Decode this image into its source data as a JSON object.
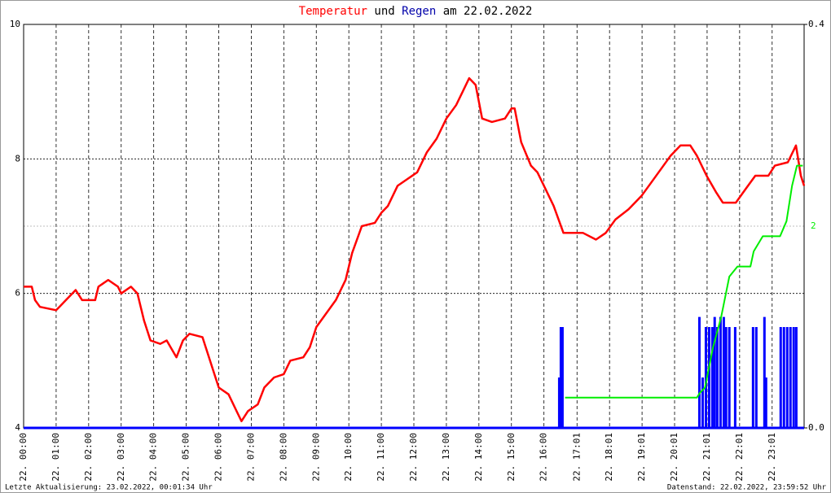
{
  "chart_data": {
    "type": "line",
    "title_parts": [
      "und",
      "am 22.02.2022"
    ],
    "footer_left": "Letzte Aktualisierung: 23.02.2022, 00:01:34 Uhr",
    "footer_right": "Datenstand: 22.02.2022, 23:59:52 Uhr",
    "xlim": [
      0,
      24
    ],
    "xticks": [
      {
        "value": 0,
        "label": "22. 00:00"
      },
      {
        "value": 1,
        "label": "22. 01:00"
      },
      {
        "value": 2,
        "label": "22. 02:00"
      },
      {
        "value": 3,
        "label": "22. 03:00"
      },
      {
        "value": 4,
        "label": "22. 04:00"
      },
      {
        "value": 5,
        "label": "22. 05:00"
      },
      {
        "value": 6,
        "label": "22. 06:00"
      },
      {
        "value": 7,
        "label": "22. 07:00"
      },
      {
        "value": 8,
        "label": "22. 08:00"
      },
      {
        "value": 9,
        "label": "22. 09:00"
      },
      {
        "value": 10,
        "label": "22. 10:00"
      },
      {
        "value": 11,
        "label": "22. 11:00"
      },
      {
        "value": 12,
        "label": "22. 12:00"
      },
      {
        "value": 13,
        "label": "22. 13:00"
      },
      {
        "value": 14,
        "label": "22. 14:00"
      },
      {
        "value": 15,
        "label": "22. 15:00"
      },
      {
        "value": 16,
        "label": "22. 16:00"
      },
      {
        "value": 17.017,
        "label": "22. 17:01"
      },
      {
        "value": 18.017,
        "label": "22. 18:01"
      },
      {
        "value": 19.017,
        "label": "22. 19:01"
      },
      {
        "value": 20.017,
        "label": "22. 20:01"
      },
      {
        "value": 21.017,
        "label": "22. 21:01"
      },
      {
        "value": 22.017,
        "label": "22. 22:01"
      },
      {
        "value": 23.017,
        "label": "22. 23:01"
      }
    ],
    "ylim": [
      4,
      10
    ],
    "yticks": [
      4,
      6,
      8,
      10
    ],
    "y2lim": [
      0,
      0.4
    ],
    "y2ticks": [
      {
        "value": 0,
        "label": "0.0"
      },
      {
        "value": 0.4,
        "label": "0.4"
      }
    ],
    "y3lim": [
      0,
      4
    ],
    "y3ticks": [
      2
    ],
    "grid": true,
    "series": [
      {
        "name": "Temperatur",
        "color": "#ff0000",
        "type": "line",
        "x": [
          0,
          0.25,
          0.35,
          0.5,
          1.0,
          1.1,
          1.3,
          1.6,
          1.8,
          2.2,
          2.3,
          2.6,
          2.9,
          3.0,
          3.3,
          3.5,
          3.7,
          3.9,
          4.2,
          4.4,
          4.7,
          4.9,
          5.1,
          5.5,
          5.8,
          6.0,
          6.3,
          6.6,
          6.7,
          6.9,
          7.2,
          7.4,
          7.7,
          8.0,
          8.2,
          8.6,
          8.8,
          9.0,
          9.3,
          9.6,
          9.9,
          10.1,
          10.4,
          10.8,
          11.0,
          11.2,
          11.5,
          11.8,
          12.1,
          12.4,
          12.7,
          13.0,
          13.3,
          13.5,
          13.7,
          13.9,
          14.1,
          14.4,
          14.8,
          15.0,
          15.1,
          15.3,
          15.6,
          15.8,
          16.0,
          16.3,
          16.6,
          17.2,
          17.6,
          17.9,
          18.2,
          18.6,
          19.0,
          19.3,
          19.6,
          19.9,
          20.2,
          20.5,
          20.7,
          21.0,
          21.3,
          21.5,
          21.9,
          22.2,
          22.5,
          22.9,
          23.1,
          23.5,
          23.75,
          23.9,
          24.0
        ],
        "values": [
          6.1,
          6.1,
          5.9,
          5.8,
          5.75,
          5.8,
          5.9,
          6.05,
          5.9,
          5.9,
          6.1,
          6.2,
          6.1,
          6.0,
          6.1,
          6.0,
          5.6,
          5.3,
          5.25,
          5.3,
          5.05,
          5.3,
          5.4,
          5.35,
          4.9,
          4.6,
          4.5,
          4.2,
          4.1,
          4.25,
          4.35,
          4.6,
          4.75,
          4.8,
          5.0,
          5.05,
          5.2,
          5.5,
          5.7,
          5.9,
          6.2,
          6.6,
          7.0,
          7.05,
          7.2,
          7.3,
          7.6,
          7.7,
          7.8,
          8.1,
          8.3,
          8.6,
          8.8,
          9.0,
          9.2,
          9.1,
          8.6,
          8.55,
          8.6,
          8.75,
          8.75,
          8.25,
          7.9,
          7.8,
          7.6,
          7.3,
          6.9,
          6.9,
          6.8,
          6.9,
          7.1,
          7.25,
          7.45,
          7.65,
          7.85,
          8.05,
          8.2,
          8.2,
          8.05,
          7.75,
          7.5,
          7.35,
          7.35,
          7.55,
          7.75,
          7.75,
          7.9,
          7.95,
          8.2,
          7.75,
          7.6
        ]
      },
      {
        "name": "Regen",
        "color": "#0000ff",
        "type": "bar",
        "axis": "y2",
        "x": [
          16.47,
          16.52,
          16.57,
          20.78,
          20.88,
          20.98,
          21.08,
          21.18,
          21.25,
          21.33,
          21.43,
          21.53,
          21.6,
          21.7,
          21.88,
          22.43,
          22.53,
          22.78,
          22.83,
          23.28,
          23.38,
          23.48,
          23.58,
          23.68,
          23.76
        ],
        "values": [
          0.05,
          0.1,
          0.1,
          0.11,
          0.05,
          0.1,
          0.1,
          0.1,
          0.11,
          0.1,
          0.11,
          0.11,
          0.1,
          0.1,
          0.1,
          0.1,
          0.1,
          0.11,
          0.05,
          0.1,
          0.1,
          0.1,
          0.1,
          0.1,
          0.1
        ]
      },
      {
        "color": "#00ee00",
        "type": "line",
        "axis": "y3",
        "x": [
          16.65,
          20.7,
          20.8,
          20.95,
          21.2,
          21.45,
          21.7,
          21.95,
          22.35,
          22.45,
          22.73,
          23.26,
          23.46,
          23.63,
          23.78,
          23.96
        ],
        "values": [
          0.3,
          0.3,
          0.35,
          0.4,
          0.8,
          1.1,
          1.5,
          1.6,
          1.6,
          1.75,
          1.9,
          1.9,
          2.05,
          2.4,
          2.6,
          2.6
        ]
      }
    ]
  }
}
